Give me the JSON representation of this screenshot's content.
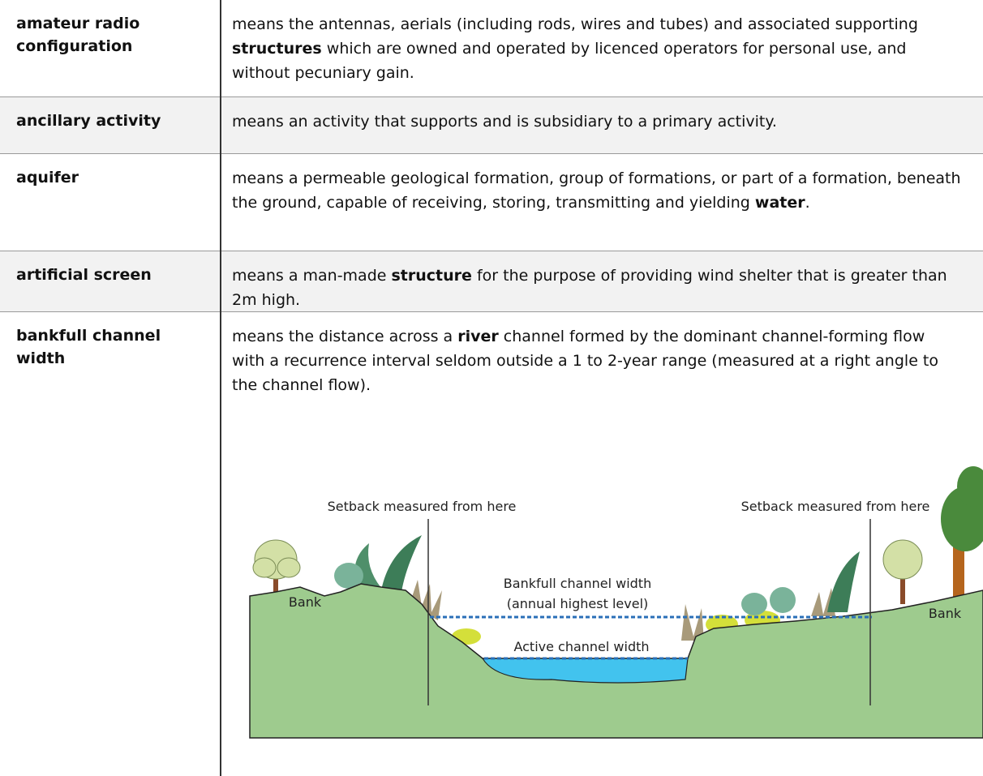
{
  "table": {
    "rows": [
      {
        "term": "amateur radio configuration",
        "definition": [
          {
            "text": "means the antennas, aerials (including rods, wires and tubes) and associated supporting "
          },
          {
            "text": "structures",
            "bold": true
          },
          {
            "text": " which are owned and operated by licenced operators for personal use, and without pecuniary gain."
          }
        ]
      },
      {
        "term": "ancillary activity",
        "definition": [
          {
            "text": "means an activity that supports and is subsidiary to a primary activity."
          }
        ]
      },
      {
        "term": "aquifer",
        "definition": [
          {
            "text": "means a permeable geological formation, group of formations, or part of a formation, beneath the ground, capable of receiving, storing, transmitting and yielding "
          },
          {
            "text": "water",
            "bold": true
          },
          {
            "text": "."
          }
        ]
      },
      {
        "term": "artificial screen",
        "definition": [
          {
            "text": "means a man-made "
          },
          {
            "text": "structure",
            "bold": true
          },
          {
            "text": " for the purpose of providing wind shelter that is greater than 2m high."
          }
        ]
      },
      {
        "term": "bankfull channel width",
        "definition": [
          {
            "text": "means the distance across a "
          },
          {
            "text": "river",
            "bold": true
          },
          {
            "text": " channel formed by the dominant channel-forming flow with a recurrence interval seldom outside a 1 to 2-year range (measured at a right angle to the channel flow)."
          }
        ]
      }
    ]
  },
  "diagram": {
    "setback_left": "Setback measured from here",
    "setback_right": "Setback measured from here",
    "bankfull_label": "Bankfull channel width",
    "bankfull_sublabel": "(annual highest level)",
    "active_label": "Active channel width",
    "bank_left": "Bank",
    "bank_right": "Bank"
  }
}
